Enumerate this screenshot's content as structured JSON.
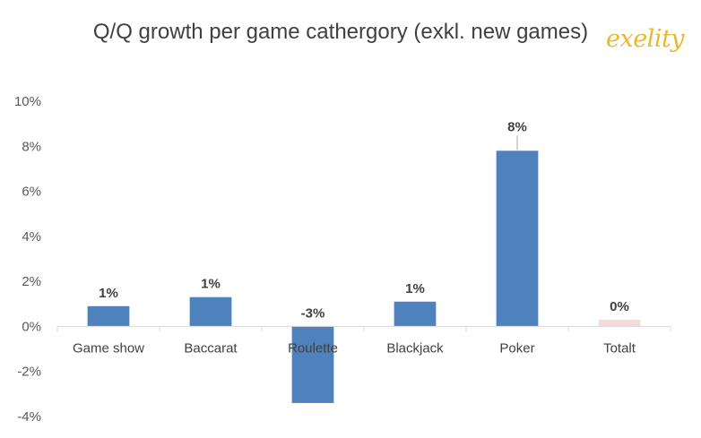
{
  "brand": {
    "logo_text": "exelity",
    "logo_color": "#e9b730"
  },
  "chart_data": {
    "type": "bar",
    "title": "Q/Q growth per game cathergory (exkl. new games)",
    "xlabel": "",
    "ylabel": "",
    "categories": [
      "Game show",
      "Baccarat",
      "Roulette",
      "Blackjack",
      "Poker",
      "Totalt"
    ],
    "values": [
      0.9,
      1.3,
      -3.4,
      1.1,
      7.8,
      0.3
    ],
    "data_labels": [
      "1%",
      "1%",
      "-3%",
      "1%",
      "8%",
      "0%"
    ],
    "bar_colors": [
      "#4f81bd",
      "#4f81bd",
      "#4f81bd",
      "#4f81bd",
      "#4f81bd",
      "#f2dcdb"
    ],
    "ylim": [
      -4,
      10
    ],
    "yticks": [
      -4,
      -2,
      0,
      2,
      4,
      6,
      8,
      10
    ],
    "ytick_labels": [
      "-4%",
      "-2%",
      "0%",
      "2%",
      "4%",
      "6%",
      "8%",
      "10%"
    ],
    "grid": false,
    "legend": "none"
  }
}
